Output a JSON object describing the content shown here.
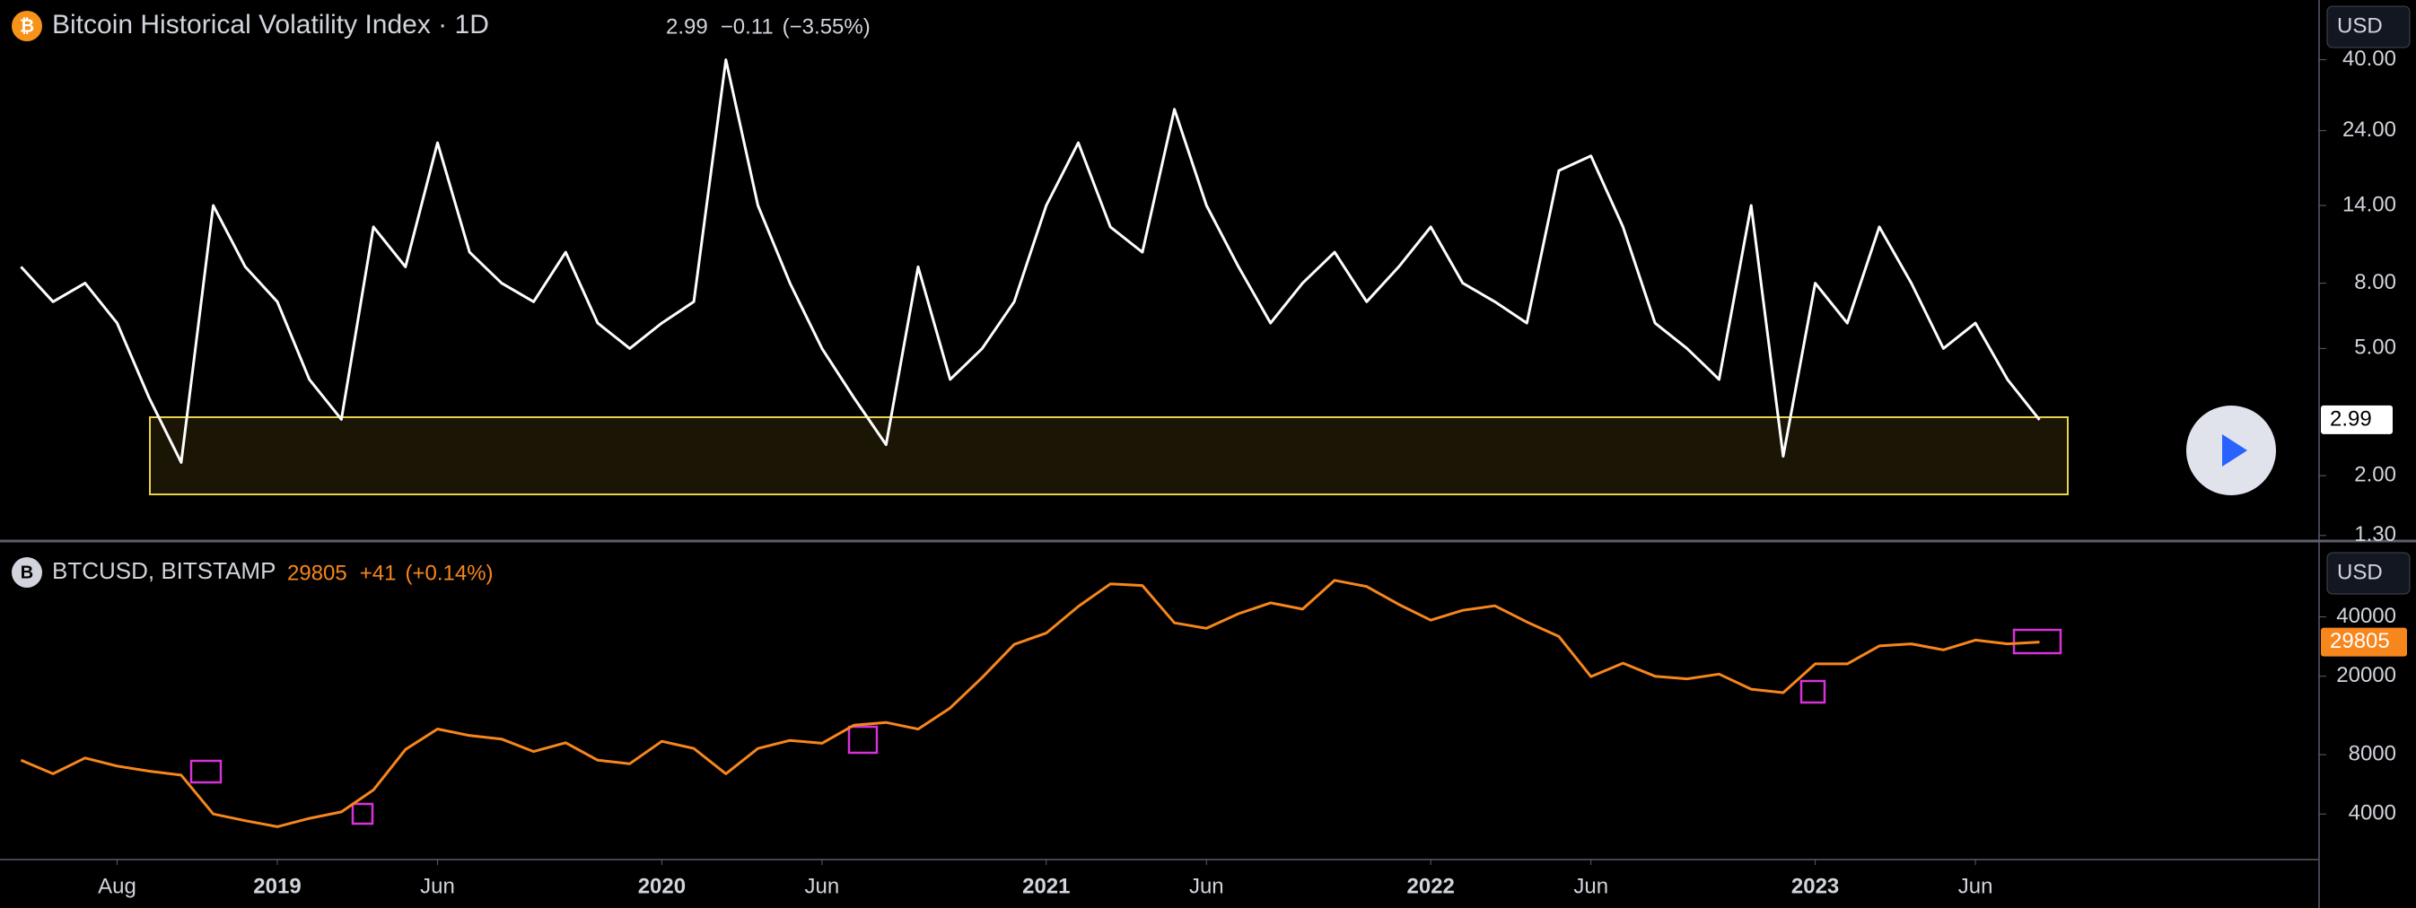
{
  "chart_data": [
    {
      "type": "line",
      "icon": "₿",
      "title": "Bitcoin Historical Volatility Index · 1D",
      "last": "2.99",
      "change": "−0.11",
      "change_pct": "(−3.55%)",
      "currency": "USD",
      "log": true,
      "color": "#ffffff",
      "x": [
        "2018-05",
        "2018-06",
        "2018-07",
        "2018-08",
        "2018-09",
        "2018-10",
        "2018-11",
        "2018-12",
        "2019-01",
        "2019-02",
        "2019-03",
        "2019-04",
        "2019-05",
        "2019-06",
        "2019-07",
        "2019-08",
        "2019-09",
        "2019-10",
        "2019-11",
        "2019-12",
        "2020-01",
        "2020-02",
        "2020-03",
        "2020-04",
        "2020-05",
        "2020-06",
        "2020-07",
        "2020-08",
        "2020-09",
        "2020-10",
        "2020-11",
        "2020-12",
        "2021-01",
        "2021-02",
        "2021-03",
        "2021-04",
        "2021-05",
        "2021-06",
        "2021-07",
        "2021-08",
        "2021-09",
        "2021-10",
        "2021-11",
        "2021-12",
        "2022-01",
        "2022-02",
        "2022-03",
        "2022-04",
        "2022-05",
        "2022-06",
        "2022-07",
        "2022-08",
        "2022-09",
        "2022-10",
        "2022-11",
        "2022-12",
        "2023-01",
        "2023-02",
        "2023-03",
        "2023-04",
        "2023-05",
        "2023-06",
        "2023-07",
        "2023-08"
      ],
      "values": [
        9,
        7,
        8,
        6,
        3.5,
        2.2,
        14,
        9,
        7,
        4,
        3,
        12,
        9,
        22,
        10,
        8,
        7,
        10,
        6,
        5,
        6,
        7,
        40,
        14,
        8,
        5,
        3.5,
        2.5,
        9,
        4,
        5,
        7,
        14,
        22,
        12,
        10,
        28,
        14,
        9,
        6,
        8,
        10,
        7,
        9,
        12,
        8,
        7,
        6,
        18,
        20,
        12,
        6,
        5,
        4,
        14,
        2.3,
        8,
        6,
        12,
        8,
        5,
        6,
        4,
        2.99
      ],
      "ylim": [
        1.29,
        61.5
      ],
      "yticks": [
        {
          "value": 1.3,
          "label": "1.30"
        },
        {
          "value": 2,
          "label": "2.00"
        },
        {
          "value": 5,
          "label": "5.00"
        },
        {
          "value": 8,
          "label": "8.00"
        },
        {
          "value": 14,
          "label": "14.00"
        },
        {
          "value": 24,
          "label": "24.00"
        },
        {
          "value": 40,
          "label": "40.00"
        }
      ]
    },
    {
      "type": "line",
      "icon": "B",
      "title": "BTCUSD, BITSTAMP",
      "last": "29805",
      "change": "+41",
      "change_pct": "(+0.14%)",
      "currency": "USD",
      "log": true,
      "color": "#f7861c",
      "x": [
        "2018-05",
        "2018-06",
        "2018-07",
        "2018-08",
        "2018-09",
        "2018-10",
        "2018-11",
        "2018-12",
        "2019-01",
        "2019-02",
        "2019-03",
        "2019-04",
        "2019-05",
        "2019-06",
        "2019-07",
        "2019-08",
        "2019-09",
        "2019-10",
        "2019-11",
        "2019-12",
        "2020-01",
        "2020-02",
        "2020-03",
        "2020-04",
        "2020-05",
        "2020-06",
        "2020-07",
        "2020-08",
        "2020-09",
        "2020-10",
        "2020-11",
        "2020-12",
        "2021-01",
        "2021-02",
        "2021-03",
        "2021-04",
        "2021-05",
        "2021-06",
        "2021-07",
        "2021-08",
        "2021-09",
        "2021-10",
        "2021-11",
        "2021-12",
        "2022-01",
        "2022-02",
        "2022-03",
        "2022-04",
        "2022-05",
        "2022-06",
        "2022-07",
        "2022-08",
        "2022-09",
        "2022-10",
        "2022-11",
        "2022-12",
        "2023-01",
        "2023-02",
        "2023-03",
        "2023-04",
        "2023-05",
        "2023-06",
        "2023-07",
        "2023-08"
      ],
      "values": [
        7500,
        6400,
        7700,
        7000,
        6600,
        6300,
        4000,
        3700,
        3450,
        3800,
        4100,
        5300,
        8500,
        10800,
        10000,
        9600,
        8300,
        9200,
        7500,
        7200,
        9350,
        8600,
        6400,
        8600,
        9450,
        9140,
        11300,
        11650,
        10780,
        13800,
        19700,
        29000,
        33100,
        45200,
        58800,
        57700,
        37300,
        35000,
        41500,
        47100,
        43800,
        61300,
        57000,
        46300,
        38500,
        43200,
        45500,
        37700,
        31800,
        19900,
        23300,
        20000,
        19400,
        20500,
        17200,
        16500,
        23100,
        23100,
        28500,
        29200,
        27200,
        30500,
        29200,
        29805
      ],
      "ylim": [
        2350,
        94000
      ],
      "yticks": [
        4000,
        8000,
        20000,
        40000
      ],
      "xticks": [
        {
          "value": "2018-08",
          "label": "Aug"
        },
        {
          "value": "2019-01",
          "label": "2019"
        },
        {
          "value": "2019-06",
          "label": "Jun"
        },
        {
          "value": "2020-01",
          "label": "2020"
        },
        {
          "value": "2020-06",
          "label": "Jun"
        },
        {
          "value": "2021-01",
          "label": "2021"
        },
        {
          "value": "2021-06",
          "label": "Jun"
        },
        {
          "value": "2022-01",
          "label": "2022"
        },
        {
          "value": "2022-06",
          "label": "Jun"
        },
        {
          "value": "2023-01",
          "label": "2023"
        },
        {
          "value": "2023-06",
          "label": "Jun"
        }
      ]
    }
  ]
}
